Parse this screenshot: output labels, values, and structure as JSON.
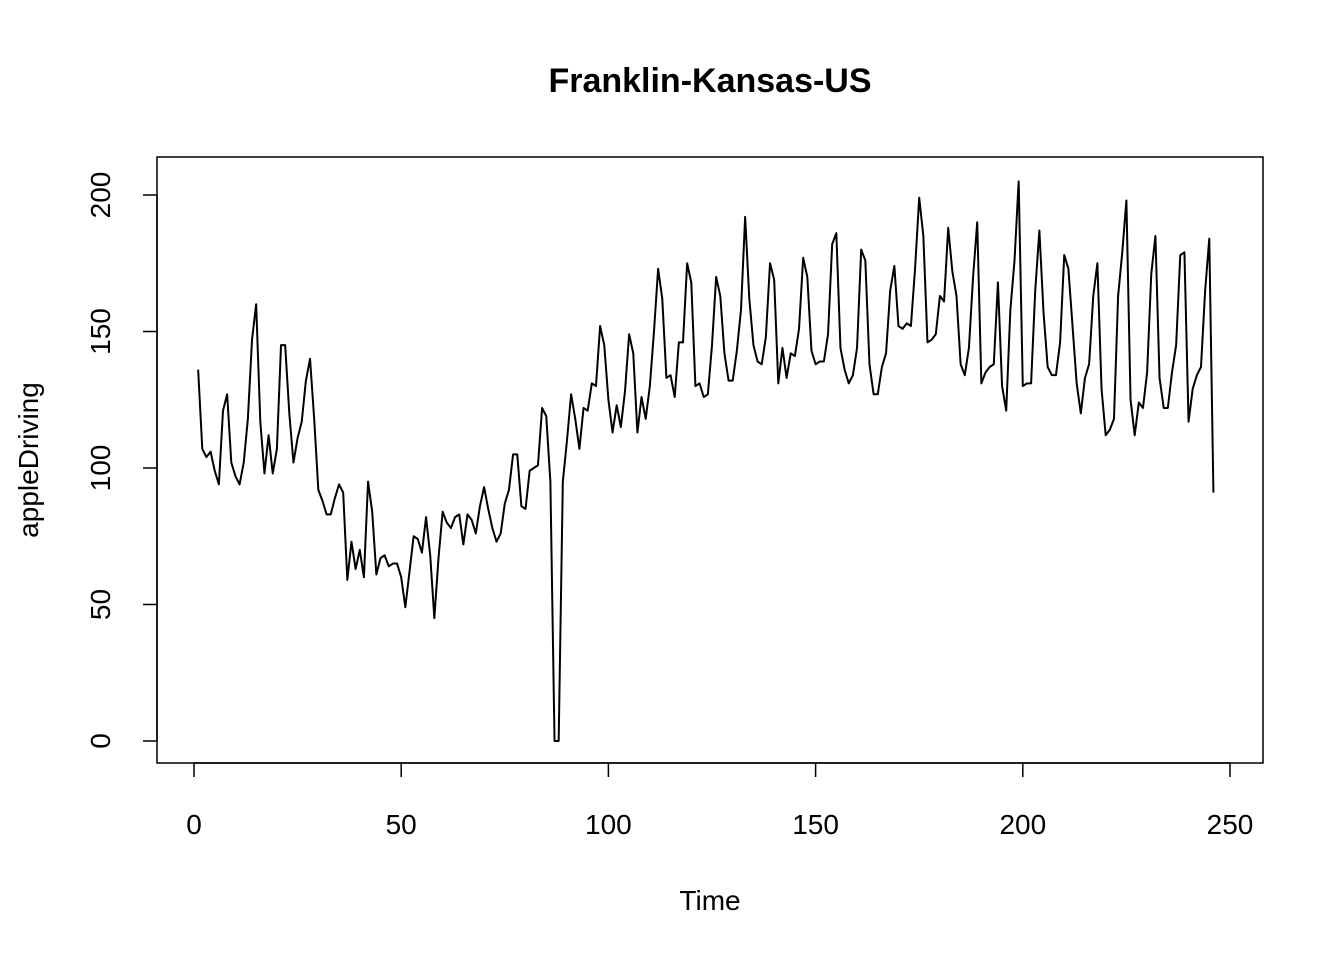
{
  "chart_data": {
    "type": "line",
    "title": "Franklin-Kansas-US",
    "xlabel": "Time",
    "ylabel": "appleDriving",
    "xlim": [
      0,
      250
    ],
    "ylim": [
      0,
      200
    ],
    "x_ticks": [
      0,
      50,
      100,
      150,
      200,
      250
    ],
    "y_ticks": [
      0,
      50,
      100,
      150,
      200
    ],
    "x_tick_labels": [
      "0",
      "50",
      "100",
      "150",
      "200",
      "250"
    ],
    "y_tick_labels": [
      "0",
      "50",
      "100",
      "150",
      "200"
    ],
    "grid": false,
    "legend": "none",
    "series": [
      {
        "name": "appleDriving",
        "x_start": 1,
        "values": [
          136,
          107,
          104,
          106,
          99,
          94,
          121,
          127,
          102,
          97,
          94,
          102,
          118,
          147,
          160,
          117,
          98,
          112,
          98,
          107,
          145,
          145,
          120,
          102,
          111,
          117,
          132,
          140,
          118,
          92,
          88,
          83,
          83,
          89,
          94,
          91,
          59,
          73,
          63,
          70,
          60,
          95,
          84,
          61,
          67,
          68,
          64,
          65,
          65,
          60,
          49,
          62,
          75,
          74,
          69,
          82,
          68,
          45,
          67,
          84,
          80,
          78,
          82,
          83,
          72,
          83,
          81,
          76,
          86,
          93,
          85,
          78,
          73,
          76,
          87,
          92,
          105,
          105,
          86,
          85,
          99,
          100,
          101,
          122,
          119,
          95,
          0,
          0,
          95,
          110,
          127,
          118,
          107,
          122,
          121,
          131,
          130,
          152,
          145,
          125,
          113,
          123,
          115,
          128,
          149,
          142,
          113,
          126,
          118,
          130,
          150,
          173,
          162,
          133,
          134,
          126,
          146,
          146,
          175,
          168,
          130,
          131,
          126,
          127,
          145,
          170,
          163,
          142,
          132,
          132,
          143,
          158,
          192,
          162,
          145,
          139,
          138,
          148,
          175,
          169,
          131,
          144,
          133,
          142,
          141,
          151,
          177,
          170,
          143,
          138,
          139,
          139,
          149,
          182,
          186,
          144,
          136,
          131,
          134,
          144,
          180,
          176,
          138,
          127,
          127,
          137,
          142,
          165,
          174,
          152,
          151,
          153,
          152,
          173,
          199,
          185,
          146,
          147,
          149,
          163,
          161,
          188,
          172,
          163,
          138,
          134,
          144,
          170,
          190,
          131,
          135,
          137,
          138,
          168,
          130,
          121,
          158,
          176,
          205,
          130,
          131,
          131,
          165,
          187,
          157,
          137,
          134,
          134,
          146,
          178,
          173,
          152,
          131,
          120,
          133,
          138,
          163,
          175,
          129,
          112,
          114,
          118,
          163,
          179,
          198,
          125,
          112,
          124,
          122,
          135,
          171,
          185,
          133,
          122,
          122,
          135,
          145,
          178,
          179,
          117,
          129,
          134,
          137,
          165,
          184,
          91
        ]
      }
    ]
  }
}
